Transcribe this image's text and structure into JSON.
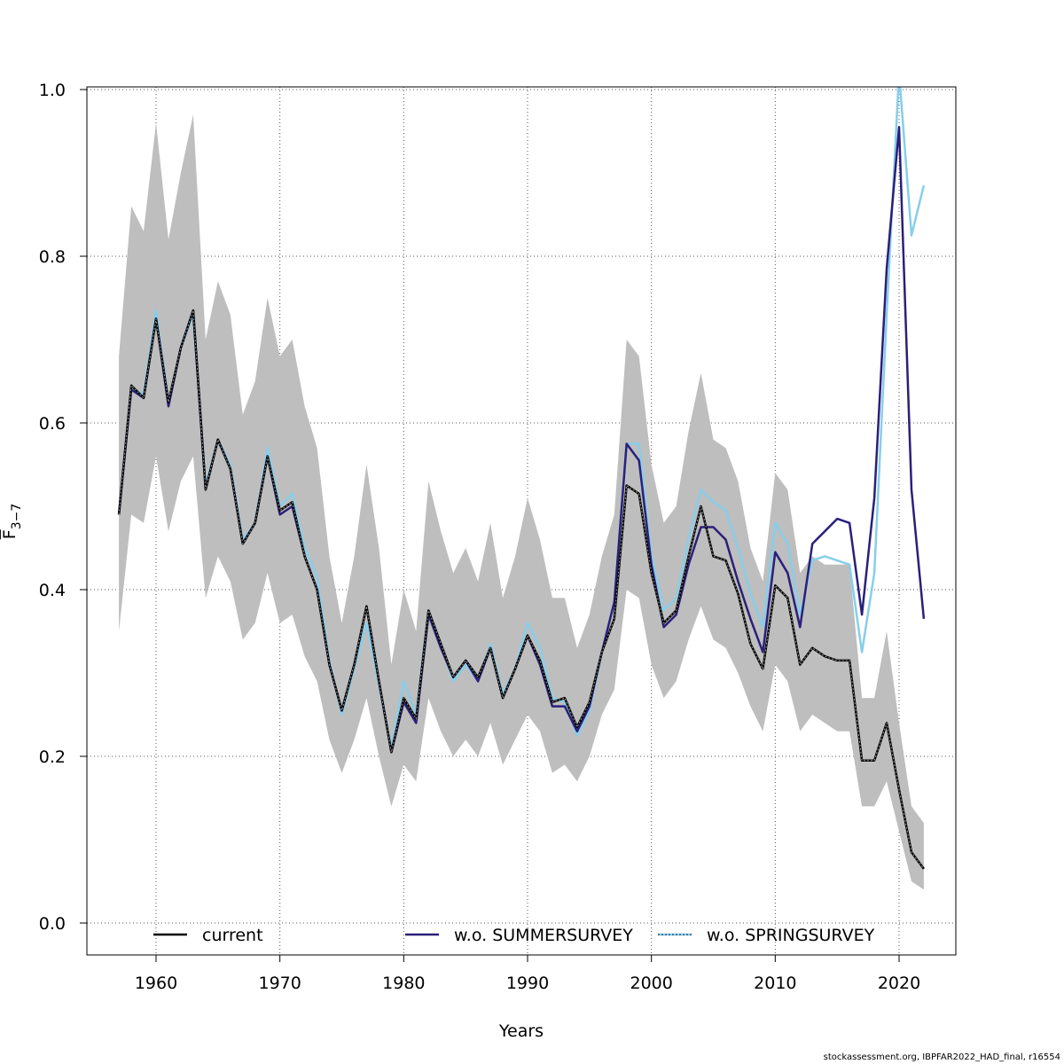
{
  "chart_data": {
    "type": "line",
    "title": "",
    "xlabel": "Years",
    "ylabel": "F",
    "ylabel_subscript": "3−7",
    "xlim": [
      1954.5,
      2024.5
    ],
    "ylim": [
      -0.038,
      1.0
    ],
    "x_ticks": [
      1960,
      1970,
      1980,
      1990,
      2000,
      2010,
      2020
    ],
    "y_ticks": [
      0.0,
      0.2,
      0.4,
      0.6,
      0.8,
      1.0
    ],
    "y_tick_labels": [
      "0.0",
      "0.2",
      "0.4",
      "0.6",
      "0.8",
      "1.0"
    ],
    "grid": true,
    "legend_position": "bottom",
    "band": {
      "color": "#bebebe",
      "x": [
        1957,
        1958,
        1959,
        1960,
        1961,
        1962,
        1963,
        1964,
        1965,
        1966,
        1967,
        1968,
        1969,
        1970,
        1971,
        1972,
        1973,
        1974,
        1975,
        1976,
        1977,
        1978,
        1979,
        1980,
        1981,
        1982,
        1983,
        1984,
        1985,
        1986,
        1987,
        1988,
        1989,
        1990,
        1991,
        1992,
        1993,
        1994,
        1995,
        1996,
        1997,
        1998,
        1999,
        2000,
        2001,
        2002,
        2003,
        2004,
        2005,
        2006,
        2007,
        2008,
        2009,
        2010,
        2011,
        2012,
        2013,
        2014,
        2015,
        2016,
        2017,
        2018,
        2019,
        2020,
        2021,
        2022
      ],
      "upper": [
        0.68,
        0.86,
        0.83,
        0.96,
        0.82,
        0.9,
        0.97,
        0.7,
        0.77,
        0.73,
        0.61,
        0.65,
        0.75,
        0.68,
        0.7,
        0.62,
        0.57,
        0.44,
        0.36,
        0.44,
        0.55,
        0.45,
        0.31,
        0.4,
        0.35,
        0.53,
        0.47,
        0.42,
        0.45,
        0.41,
        0.48,
        0.39,
        0.44,
        0.51,
        0.46,
        0.39,
        0.39,
        0.33,
        0.37,
        0.44,
        0.49,
        0.7,
        0.68,
        0.55,
        0.48,
        0.5,
        0.59,
        0.66,
        0.58,
        0.57,
        0.53,
        0.45,
        0.41,
        0.54,
        0.52,
        0.42,
        0.44,
        0.43,
        0.43,
        0.43,
        0.27,
        0.27,
        0.35,
        0.24,
        0.14,
        0.12
      ],
      "lower": [
        0.35,
        0.49,
        0.48,
        0.56,
        0.47,
        0.53,
        0.56,
        0.39,
        0.44,
        0.41,
        0.34,
        0.36,
        0.42,
        0.36,
        0.37,
        0.32,
        0.29,
        0.22,
        0.18,
        0.22,
        0.27,
        0.2,
        0.14,
        0.19,
        0.17,
        0.27,
        0.23,
        0.2,
        0.22,
        0.2,
        0.24,
        0.19,
        0.22,
        0.25,
        0.23,
        0.18,
        0.19,
        0.17,
        0.2,
        0.25,
        0.28,
        0.4,
        0.39,
        0.31,
        0.27,
        0.29,
        0.34,
        0.38,
        0.34,
        0.33,
        0.3,
        0.26,
        0.23,
        0.31,
        0.29,
        0.23,
        0.25,
        0.24,
        0.23,
        0.23,
        0.14,
        0.14,
        0.17,
        0.11,
        0.05,
        0.04
      ]
    },
    "series": [
      {
        "name": "current",
        "color": "#000000",
        "x": [
          1957,
          1958,
          1959,
          1960,
          1961,
          1962,
          1963,
          1964,
          1965,
          1966,
          1967,
          1968,
          1969,
          1970,
          1971,
          1972,
          1973,
          1974,
          1975,
          1976,
          1977,
          1978,
          1979,
          1980,
          1981,
          1982,
          1983,
          1984,
          1985,
          1986,
          1987,
          1988,
          1989,
          1990,
          1991,
          1992,
          1993,
          1994,
          1995,
          1996,
          1997,
          1998,
          1999,
          2000,
          2001,
          2002,
          2003,
          2004,
          2005,
          2006,
          2007,
          2008,
          2009,
          2010,
          2011,
          2012,
          2013,
          2014,
          2015,
          2016,
          2017,
          2018,
          2019,
          2020,
          2021,
          2022
        ],
        "values": [
          0.49,
          0.645,
          0.63,
          0.725,
          0.625,
          0.69,
          0.735,
          0.52,
          0.58,
          0.545,
          0.455,
          0.48,
          0.56,
          0.495,
          0.505,
          0.44,
          0.4,
          0.31,
          0.255,
          0.31,
          0.38,
          0.29,
          0.205,
          0.27,
          0.245,
          0.375,
          0.335,
          0.295,
          0.315,
          0.295,
          0.33,
          0.27,
          0.305,
          0.345,
          0.315,
          0.265,
          0.27,
          0.235,
          0.265,
          0.325,
          0.365,
          0.525,
          0.515,
          0.42,
          0.36,
          0.375,
          0.44,
          0.5,
          0.44,
          0.435,
          0.395,
          0.335,
          0.305,
          0.405,
          0.39,
          0.31,
          0.33,
          0.32,
          0.315,
          0.315,
          0.195,
          0.195,
          0.24,
          0.16,
          0.085,
          0.065
        ]
      },
      {
        "name": "w.o. SUMMERSURVEY",
        "color": "#2a1f7a",
        "x": [
          1957,
          1958,
          1959,
          1960,
          1961,
          1962,
          1963,
          1964,
          1965,
          1966,
          1967,
          1968,
          1969,
          1970,
          1971,
          1972,
          1973,
          1974,
          1975,
          1976,
          1977,
          1978,
          1979,
          1980,
          1981,
          1982,
          1983,
          1984,
          1985,
          1986,
          1987,
          1988,
          1989,
          1990,
          1991,
          1992,
          1993,
          1994,
          1995,
          1996,
          1997,
          1998,
          1999,
          2000,
          2001,
          2002,
          2003,
          2004,
          2005,
          2006,
          2007,
          2008,
          2009,
          2010,
          2011,
          2012,
          2013,
          2014,
          2015,
          2016,
          2017,
          2018,
          2019,
          2020,
          2021,
          2022
        ],
        "values": [
          0.49,
          0.64,
          0.63,
          0.725,
          0.62,
          0.69,
          0.735,
          0.52,
          0.58,
          0.545,
          0.455,
          0.48,
          0.56,
          0.49,
          0.5,
          0.44,
          0.4,
          0.31,
          0.255,
          0.31,
          0.38,
          0.29,
          0.205,
          0.265,
          0.24,
          0.37,
          0.33,
          0.295,
          0.315,
          0.29,
          0.33,
          0.27,
          0.305,
          0.345,
          0.31,
          0.26,
          0.26,
          0.23,
          0.26,
          0.325,
          0.385,
          0.575,
          0.555,
          0.43,
          0.355,
          0.37,
          0.43,
          0.475,
          0.475,
          0.46,
          0.41,
          0.365,
          0.325,
          0.445,
          0.42,
          0.355,
          0.455,
          0.47,
          0.485,
          0.48,
          0.37,
          0.51,
          0.785,
          0.955,
          0.52,
          0.365
        ]
      },
      {
        "name": "w.o. SPRINGSURVEY",
        "color": "#87ceeb",
        "x": [
          1957,
          1958,
          1959,
          1960,
          1961,
          1962,
          1963,
          1964,
          1965,
          1966,
          1967,
          1968,
          1969,
          1970,
          1971,
          1972,
          1973,
          1974,
          1975,
          1976,
          1977,
          1978,
          1979,
          1980,
          1981,
          1982,
          1983,
          1984,
          1985,
          1986,
          1987,
          1988,
          1989,
          1990,
          1991,
          1992,
          1993,
          1994,
          1995,
          1996,
          1997,
          1998,
          1999,
          2000,
          2001,
          2002,
          2003,
          2004,
          2005,
          2006,
          2007,
          2008,
          2009,
          2010,
          2011,
          2012,
          2013,
          2014,
          2015,
          2016,
          2017,
          2018,
          2019,
          2020,
          2021,
          2022
        ],
        "values": [
          0.49,
          0.64,
          0.635,
          0.735,
          0.625,
          0.69,
          0.73,
          0.525,
          0.58,
          0.55,
          0.46,
          0.48,
          0.57,
          0.5,
          0.515,
          0.45,
          0.415,
          0.315,
          0.25,
          0.305,
          0.36,
          0.285,
          0.21,
          0.29,
          0.25,
          0.375,
          0.335,
          0.29,
          0.31,
          0.29,
          0.335,
          0.275,
          0.305,
          0.36,
          0.33,
          0.27,
          0.265,
          0.225,
          0.255,
          0.325,
          0.385,
          0.575,
          0.575,
          0.44,
          0.375,
          0.39,
          0.46,
          0.52,
          0.505,
          0.495,
          0.45,
          0.395,
          0.355,
          0.48,
          0.455,
          0.37,
          0.435,
          0.44,
          0.435,
          0.43,
          0.325,
          0.42,
          0.73,
          1.02,
          0.825,
          0.885
        ]
      }
    ],
    "legend": [
      {
        "label": "current",
        "color": "#000000"
      },
      {
        "label": "w.o. SUMMERSURVEY",
        "color": "#2a1f7a"
      },
      {
        "label": "w.o. SPRINGSURVEY",
        "color": "#87ceeb"
      }
    ]
  },
  "footer": {
    "caption": "stockassessment.org, IBPFAR2022_HAD_final, r16554"
  }
}
